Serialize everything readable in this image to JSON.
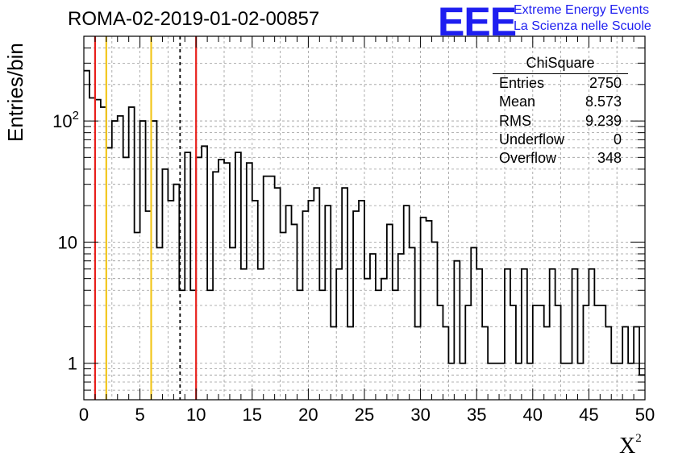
{
  "chart_data": {
    "type": "histogram",
    "title": "ROMA-02-2019-01-02-00857",
    "xlabel": "X",
    "xlabel_superscript": "2",
    "ylabel": "Entries/bin",
    "xlim": [
      0,
      50
    ],
    "ylim": [
      0.5,
      500
    ],
    "yscale": "log",
    "grid": true,
    "bin_width": 0.5,
    "x_ticks": [
      "0",
      "5",
      "10",
      "15",
      "20",
      "25",
      "30",
      "35",
      "40",
      "45",
      "50"
    ],
    "y_ticks": [
      {
        "value": 1,
        "label": "1"
      },
      {
        "value": 10,
        "label": "10"
      },
      {
        "value": 100,
        "label": "10",
        "exponent": "2"
      }
    ],
    "values": [
      260,
      155,
      150,
      130,
      60,
      100,
      110,
      50,
      130,
      12,
      100,
      18,
      100,
      9,
      40,
      22,
      30,
      4,
      55,
      4,
      50,
      62,
      4,
      38,
      48,
      45,
      9,
      55,
      6,
      45,
      22,
      6,
      35,
      35,
      28,
      12,
      20,
      14,
      4,
      18,
      22,
      28,
      4,
      20,
      2,
      6,
      28,
      2,
      18,
      22,
      5,
      8,
      4,
      5,
      14,
      4,
      8,
      20,
      9,
      2,
      16,
      15,
      10,
      3,
      2,
      1,
      7,
      1,
      3,
      9,
      6,
      2,
      1,
      1,
      1,
      6,
      3,
      1,
      6,
      1,
      3,
      3,
      2,
      6,
      3,
      1,
      1,
      6,
      1,
      3,
      6,
      3,
      3,
      2,
      1,
      1,
      2,
      1,
      2,
      0.8
    ],
    "lines": [
      {
        "x": 1.0,
        "color": "#e8201c",
        "style": "solid"
      },
      {
        "x": 2.0,
        "color": "#f2c61c",
        "style": "solid"
      },
      {
        "x": 6.0,
        "color": "#f2c61c",
        "style": "solid"
      },
      {
        "x": 8.573,
        "color": "#000000",
        "style": "dashed"
      },
      {
        "x": 10.0,
        "color": "#e8201c",
        "style": "solid"
      }
    ],
    "stats": {
      "title": "ChiSquare",
      "rows": [
        {
          "label": "Entries",
          "value": "2750"
        },
        {
          "label": "Mean",
          "value": "8.573"
        },
        {
          "label": "RMS",
          "value": "9.239"
        },
        {
          "label": "Underflow",
          "value": "0"
        },
        {
          "label": "Overflow",
          "value": "348"
        }
      ]
    }
  },
  "branding": {
    "logo": "EEE",
    "line1": "Extreme Energy Events",
    "line2": "La Scienza nelle Scuole",
    "color": "#1e1ef0"
  }
}
